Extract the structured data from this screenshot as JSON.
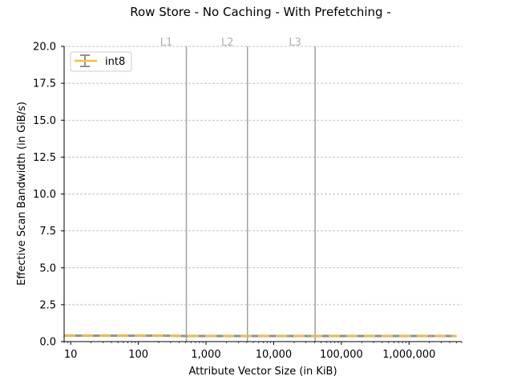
{
  "chart_data": {
    "type": "line",
    "title": "Row Store - No Caching - With Prefetching -",
    "xlabel": "Attribute Vector Size (in KiB)",
    "ylabel": "Effective Scan Bandwidth (in GiB/s)",
    "xscale": "log",
    "xlim": [
      8,
      6000000
    ],
    "ylim": [
      0,
      20
    ],
    "xticks": [
      10,
      100,
      1000,
      10000,
      100000,
      1000000
    ],
    "xtick_labels": [
      "10",
      "100",
      "1,000",
      "10,000",
      "100,000",
      "1,000,000"
    ],
    "yticks": [
      0,
      2.5,
      5,
      7.5,
      10,
      12.5,
      15,
      17.5,
      20
    ],
    "ytick_labels": [
      "0.0",
      "2.5",
      "5.0",
      "7.5",
      "10.0",
      "12.5",
      "15.0",
      "17.5",
      "20.0"
    ],
    "grid": "horizontal dashed",
    "legend_position": "top-left",
    "cache_lines": [
      {
        "label": "L1",
        "x": 512
      },
      {
        "label": "L2",
        "x": 4096
      },
      {
        "label": "L3",
        "x": 40960
      }
    ],
    "series": [
      {
        "name": "int8",
        "color": "#f0c040",
        "error_color": "#909090",
        "x": [
          8,
          16,
          32,
          64,
          128,
          256,
          512,
          1024,
          2048,
          4096,
          8192,
          16384,
          32768,
          65536,
          131072,
          262144,
          524288,
          1048576,
          2097152,
          4194304,
          5000000
        ],
        "y": [
          0.4,
          0.4,
          0.4,
          0.4,
          0.4,
          0.4,
          0.38,
          0.38,
          0.38,
          0.38,
          0.38,
          0.38,
          0.38,
          0.38,
          0.38,
          0.38,
          0.38,
          0.38,
          0.38,
          0.38,
          0.38
        ]
      }
    ]
  }
}
